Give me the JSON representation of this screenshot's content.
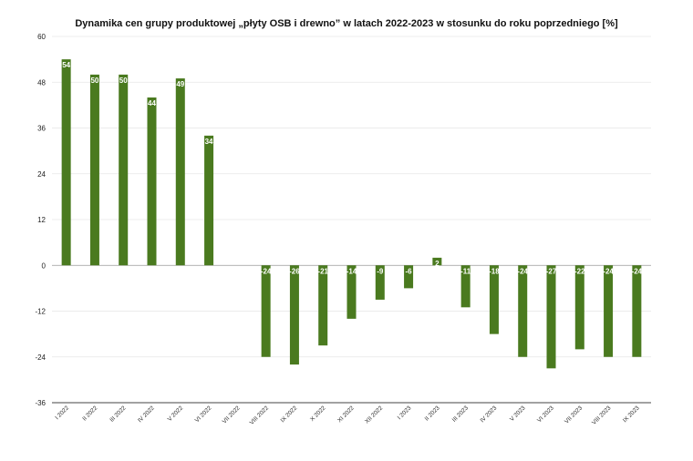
{
  "chart_data": {
    "type": "bar",
    "title": "Dynamika cen grupy produktowej „płyty OSB i drewno” w latach 2022-2023 w stosunku do roku poprzedniego [%]",
    "categories": [
      "I 2022",
      "II 2022",
      "III 2022",
      "IV 2022",
      "V 2022",
      "VI 2022",
      "VII 2022",
      "VIII 2022",
      "IX 2022",
      "X 2022",
      "XI 2022",
      "XII 2022",
      "I 2023",
      "II 2023",
      "III 2023",
      "IV 2023",
      "V 2023",
      "VI 2023",
      "VII 2023",
      "VIII 2023",
      "IX 2023"
    ],
    "values": [
      54,
      50,
      50,
      44,
      49,
      34,
      null,
      -24,
      -26,
      -21,
      -14,
      -9,
      -6,
      2,
      -11,
      -18,
      -24,
      -27,
      -22,
      -24,
      -24
    ],
    "ylim": [
      -36,
      60
    ],
    "yticks": [
      60,
      48,
      36,
      24,
      12,
      0,
      -12,
      -24,
      -36
    ],
    "grid": true,
    "colors": {
      "bar": "#4a7a1f",
      "grid": "#e6e6e6",
      "zero_line": "#999999",
      "axis": "#444444"
    }
  }
}
